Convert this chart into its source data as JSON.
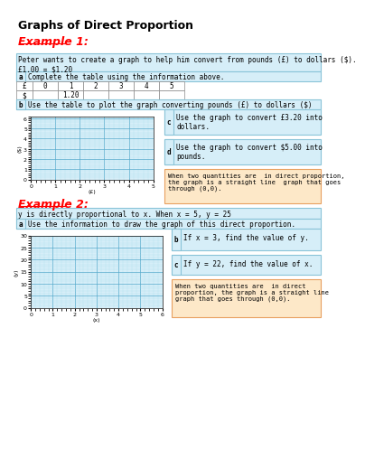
{
  "title": "Graphs of Direct Proportion",
  "bg_color": "#ffffff",
  "example1_label": "Example 1:",
  "example1_color": "#ff0000",
  "ex1_context": "Peter wants to create a graph to help him convert from pounds (£) to dollars ($).\n£1.00 = $1.20",
  "ex1_a_text": "Complete the table using the information above.",
  "ex1_table_headers": [
    "£",
    "0",
    "1",
    "2",
    "3",
    "4",
    "5"
  ],
  "ex1_table_row2": [
    "$",
    "",
    "1.20",
    "",
    "",
    "",
    ""
  ],
  "ex1_b_text": "Use the table to plot the graph converting pounds (£) to dollars ($)",
  "ex1_graph_xlabel": "(£)",
  "ex1_graph_ylabel": "($)",
  "ex1_c_text": "Use the graph to convert £3.20 into\ndollars.",
  "ex1_d_text": "Use the graph to convert $5.00 into\npounds.",
  "ex1_note": "When two quantities are  in direct proportion,\nthe graph is a straight line  graph that goes\nthrough (0,0).",
  "example2_label": "Example 2:",
  "example2_color": "#ff0000",
  "ex2_context": "y is directly proportional to x. When x = 5, y = 25",
  "ex2_a_text": "Use the information to draw the graph of this direct proportion.",
  "ex2_graph_xlabel": "(x)",
  "ex2_graph_ylabel": "(y)",
  "ex2_b_text": "If x = 3, find the value of y.",
  "ex2_c_text": "If y = 22, find the value of x.",
  "ex2_note": "When two quantities are  in direct\nproportion, the graph is a straight line\ngraph that goes through (0,0).",
  "light_blue_bg": "#d6eef8",
  "light_blue_border": "#8ac4d8",
  "light_orange_bg": "#fde8c8",
  "light_orange_border": "#e8a060",
  "grid_color": "#aaddee",
  "grid_major_color": "#55aacc"
}
